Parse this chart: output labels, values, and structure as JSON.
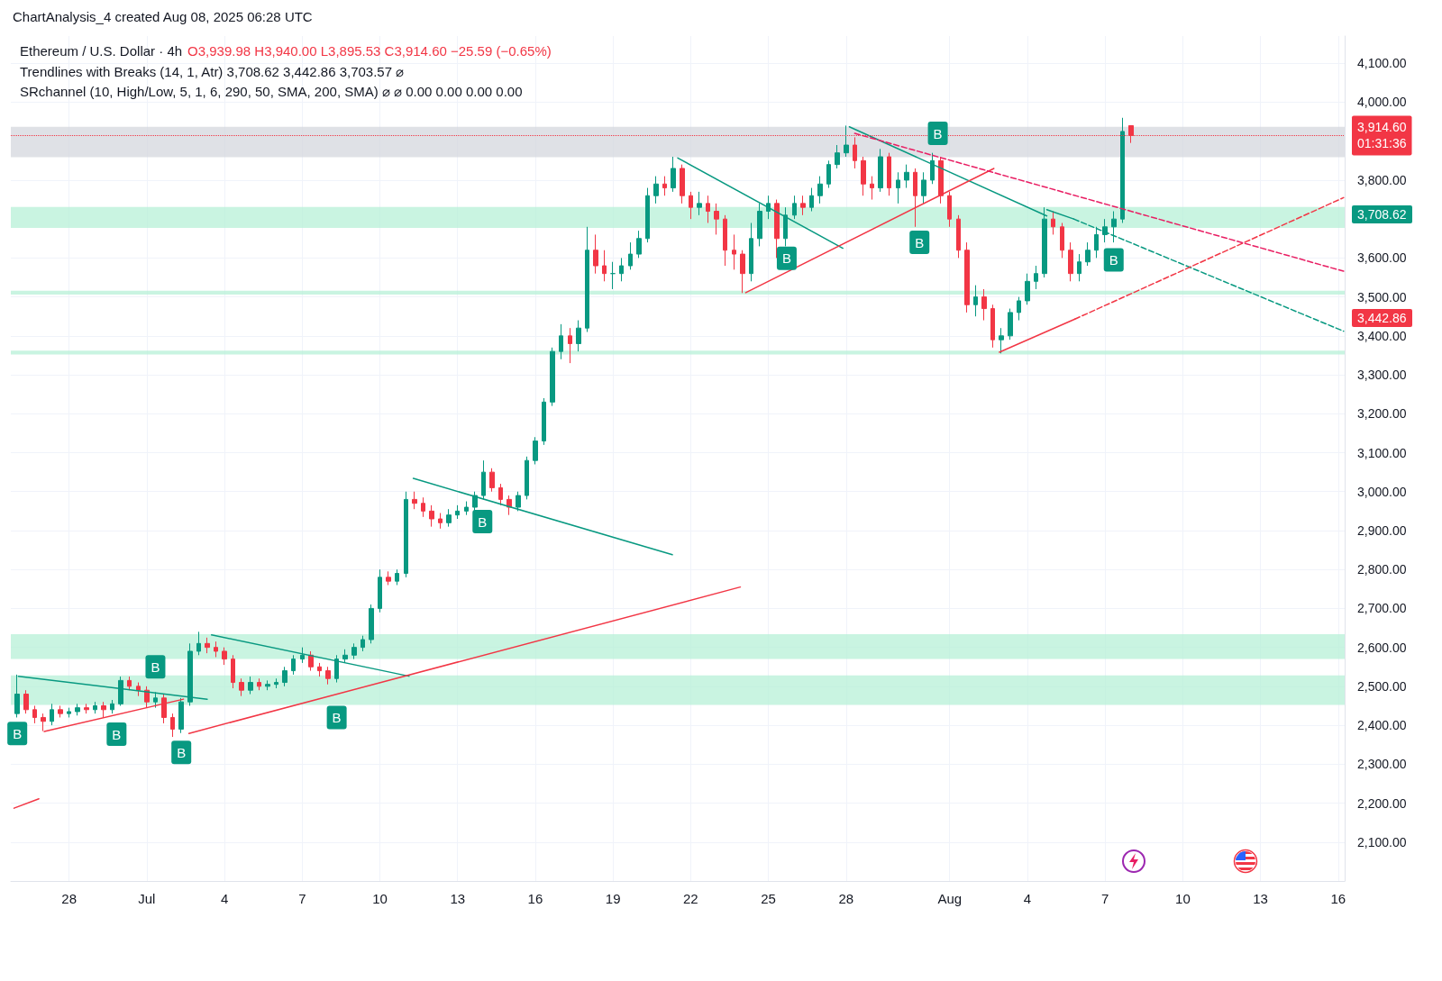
{
  "chart_data": {
    "type": "candlestick",
    "title": "Ethereum / U.S. Dollar · 4h",
    "subtitle": "O3,939.98 H3,940.00 L3,895.53 C3,914.60 −25.59 (−0.65%)",
    "annotations": [
      "ChartAnalysis_4 created Aug 08, 2025 06:28 UTC",
      "Trendlines with Breaks (14, 1, Atr) 3,708.62 3,442.86 3,703.57 ⌀",
      "SRchannel (10, High/Low, 5, 1, 6, 290, 50, SMA, 200, SMA) ⌀ ⌀ 0.00 0.00 0.00 0.00",
      {
        "text": "B",
        "x": "2025-06-26T00:00",
        "y": 2379
      },
      {
        "text": "B",
        "x": "2025-06-29T20:00",
        "y": 2377
      },
      {
        "text": "B",
        "x": "2025-07-01T08:00",
        "y": 2550
      },
      {
        "text": "B",
        "x": "2025-07-02T08:00",
        "y": 2330
      },
      {
        "text": "B",
        "x": "2025-07-08T08:00",
        "y": 2420
      },
      {
        "text": "B",
        "x": "2025-07-13T23:00",
        "y": 2923
      },
      {
        "text": "B",
        "x": "2025-07-25T17:00",
        "y": 3599
      },
      {
        "text": "B",
        "x": "2025-07-30T20:00",
        "y": 3640
      },
      {
        "text": "B",
        "x": "2025-07-31T13:00",
        "y": 3920
      },
      {
        "text": "B",
        "x": "2025-08-07T08:00",
        "y": 3595
      },
      "3,708.62",
      "3,442.86"
    ],
    "xlim": [
      "2025-06-25T18:00",
      "2025-08-16T06:00"
    ],
    "xticks": [
      {
        "value": "2025-06-28",
        "label": "28"
      },
      {
        "value": "2025-07-01",
        "label": "Jul"
      },
      {
        "value": "2025-07-04",
        "label": "4"
      },
      {
        "value": "2025-07-07",
        "label": "7"
      },
      {
        "value": "2025-07-10",
        "label": "10"
      },
      {
        "value": "2025-07-13",
        "label": "13"
      },
      {
        "value": "2025-07-16",
        "label": "16"
      },
      {
        "value": "2025-07-19",
        "label": "19"
      },
      {
        "value": "2025-07-22",
        "label": "22"
      },
      {
        "value": "2025-07-25",
        "label": "25"
      },
      {
        "value": "2025-07-28",
        "label": "28"
      },
      {
        "value": "2025-08-01",
        "label": "Aug"
      },
      {
        "value": "2025-08-04",
        "label": "4"
      },
      {
        "value": "2025-08-07",
        "label": "7"
      },
      {
        "value": "2025-08-10",
        "label": "10"
      },
      {
        "value": "2025-08-13",
        "label": "13"
      },
      {
        "value": "2025-08-16",
        "label": "16"
      }
    ],
    "ylim": [
      2000,
      4170
    ],
    "yticks": [
      {
        "value": 2100,
        "label": "2,100.00"
      },
      {
        "value": 2200,
        "label": "2,200.00"
      },
      {
        "value": 2300,
        "label": "2,300.00"
      },
      {
        "value": 2400,
        "label": "2,400.00"
      },
      {
        "value": 2500,
        "label": "2,500.00"
      },
      {
        "value": 2600,
        "label": "2,600.00"
      },
      {
        "value": 2700,
        "label": "2,700.00"
      },
      {
        "value": 2800,
        "label": "2,800.00"
      },
      {
        "value": 2900,
        "label": "2,900.00"
      },
      {
        "value": 3000,
        "label": "3,000.00"
      },
      {
        "value": 3100,
        "label": "3,100.00"
      },
      {
        "value": 3200,
        "label": "3,200.00"
      },
      {
        "value": 3300,
        "label": "3,300.00"
      },
      {
        "value": 3400,
        "label": "3,400.00"
      },
      {
        "value": 3500,
        "label": "3,500.00"
      },
      {
        "value": 3600,
        "label": "3,600.00"
      },
      {
        "value": 3800,
        "label": "3,800.00"
      },
      {
        "value": 4000,
        "label": "4,000.00"
      },
      {
        "value": 4100,
        "label": "4,100.00"
      }
    ],
    "grid": true,
    "marker": "none",
    "ref_lines": [
      {
        "axis": "y",
        "value": 3914.6,
        "label": "3,914.60\n01:31:36",
        "color": "#f23645",
        "line_style": "dotted"
      }
    ],
    "bands": [
      {
        "axis": "y",
        "from": 3859,
        "to": 3937,
        "color": "#d1d4dc"
      },
      {
        "axis": "y",
        "from": 3677,
        "to": 3731,
        "color": "#b2f0d4"
      },
      {
        "axis": "y",
        "from": 3506,
        "to": 3516,
        "color": "#b2f0d4"
      },
      {
        "axis": "y",
        "from": 3352,
        "to": 3362,
        "color": "#b2f0d4"
      },
      {
        "axis": "y",
        "from": 2570,
        "to": 2634,
        "color": "#b2f0d4"
      },
      {
        "axis": "y",
        "from": 2452,
        "to": 2528,
        "color": "#b2f0d4"
      }
    ],
    "series": [
      {
        "x": [
          "2025-06-26T00:00",
          "2025-06-26T08:00",
          "2025-06-26T16:00",
          "2025-06-27T00:00",
          "2025-06-27T08:00",
          "2025-06-27T16:00",
          "2025-06-28T00:00",
          "2025-06-28T08:00",
          "2025-06-28T16:00",
          "2025-06-29T00:00",
          "2025-06-29T08:00",
          "2025-06-29T16:00",
          "2025-06-30T00:00",
          "2025-06-30T08:00",
          "2025-06-30T16:00",
          "2025-07-01T00:00",
          "2025-07-01T08:00",
          "2025-07-01T16:00",
          "2025-07-02T00:00",
          "2025-07-02T08:00",
          "2025-07-02T16:00",
          "2025-07-03T00:00",
          "2025-07-03T08:00",
          "2025-07-03T16:00",
          "2025-07-04T00:00",
          "2025-07-04T08:00",
          "2025-07-04T16:00",
          "2025-07-05T00:00",
          "2025-07-05T08:00",
          "2025-07-05T16:00",
          "2025-07-06T00:00",
          "2025-07-06T08:00",
          "2025-07-06T16:00",
          "2025-07-07T00:00",
          "2025-07-07T08:00",
          "2025-07-07T16:00",
          "2025-07-08T00:00",
          "2025-07-08T08:00",
          "2025-07-08T16:00",
          "2025-07-09T00:00",
          "2025-07-09T08:00",
          "2025-07-09T16:00",
          "2025-07-10T00:00",
          "2025-07-10T08:00",
          "2025-07-10T16:00",
          "2025-07-11T00:00",
          "2025-07-11T08:00",
          "2025-07-11T16:00",
          "2025-07-12T00:00",
          "2025-07-12T08:00",
          "2025-07-12T16:00",
          "2025-07-13T00:00",
          "2025-07-13T08:00",
          "2025-07-13T16:00",
          "2025-07-14T00:00",
          "2025-07-14T08:00",
          "2025-07-14T16:00",
          "2025-07-15T00:00",
          "2025-07-15T08:00",
          "2025-07-15T16:00",
          "2025-07-16T00:00",
          "2025-07-16T08:00",
          "2025-07-16T16:00",
          "2025-07-17T00:00",
          "2025-07-17T08:00",
          "2025-07-17T16:00",
          "2025-07-18T00:00",
          "2025-07-18T08:00",
          "2025-07-18T16:00",
          "2025-07-19T00:00",
          "2025-07-19T08:00",
          "2025-07-19T16:00",
          "2025-07-20T00:00",
          "2025-07-20T08:00",
          "2025-07-20T16:00",
          "2025-07-21T00:00",
          "2025-07-21T08:00",
          "2025-07-21T16:00",
          "2025-07-22T00:00",
          "2025-07-22T08:00",
          "2025-07-22T16:00",
          "2025-07-23T00:00",
          "2025-07-23T08:00",
          "2025-07-23T16:00",
          "2025-07-24T00:00",
          "2025-07-24T08:00",
          "2025-07-24T16:00",
          "2025-07-25T00:00",
          "2025-07-25T08:00",
          "2025-07-25T16:00",
          "2025-07-26T00:00",
          "2025-07-26T08:00",
          "2025-07-26T16:00",
          "2025-07-27T00:00",
          "2025-07-27T08:00",
          "2025-07-27T16:00",
          "2025-07-28T00:00",
          "2025-07-28T08:00",
          "2025-07-28T16:00",
          "2025-07-29T00:00",
          "2025-07-29T08:00",
          "2025-07-29T16:00",
          "2025-07-30T00:00",
          "2025-07-30T08:00",
          "2025-07-30T16:00",
          "2025-07-31T00:00",
          "2025-07-31T08:00",
          "2025-07-31T16:00",
          "2025-08-01T00:00",
          "2025-08-01T08:00",
          "2025-08-01T16:00",
          "2025-08-02T00:00",
          "2025-08-02T08:00",
          "2025-08-02T16:00",
          "2025-08-03T00:00",
          "2025-08-03T08:00",
          "2025-08-03T16:00",
          "2025-08-04T00:00",
          "2025-08-04T08:00",
          "2025-08-04T16:00",
          "2025-08-05T00:00",
          "2025-08-05T08:00",
          "2025-08-05T16:00",
          "2025-08-06T00:00",
          "2025-08-06T08:00",
          "2025-08-06T16:00",
          "2025-08-07T00:00",
          "2025-08-07T08:00",
          "2025-08-07T16:00",
          "2025-08-08T00:00"
        ],
        "ohlc": [
          [
            2430,
            2530,
            2420,
            2480
          ],
          [
            2480,
            2490,
            2430,
            2440
          ],
          [
            2440,
            2450,
            2405,
            2420
          ],
          [
            2420,
            2430,
            2385,
            2410
          ],
          [
            2410,
            2455,
            2400,
            2440
          ],
          [
            2440,
            2450,
            2420,
            2430
          ],
          [
            2430,
            2445,
            2420,
            2435
          ],
          [
            2435,
            2455,
            2425,
            2445
          ],
          [
            2445,
            2455,
            2430,
            2440
          ],
          [
            2440,
            2460,
            2430,
            2450
          ],
          [
            2450,
            2460,
            2420,
            2440
          ],
          [
            2440,
            2465,
            2430,
            2455
          ],
          [
            2455,
            2525,
            2450,
            2515
          ],
          [
            2515,
            2525,
            2490,
            2500
          ],
          [
            2500,
            2510,
            2475,
            2490
          ],
          [
            2490,
            2500,
            2445,
            2460
          ],
          [
            2460,
            2485,
            2445,
            2470
          ],
          [
            2470,
            2480,
            2405,
            2420
          ],
          [
            2420,
            2430,
            2370,
            2390
          ],
          [
            2390,
            2470,
            2380,
            2460
          ],
          [
            2460,
            2610,
            2450,
            2590
          ],
          [
            2590,
            2640,
            2580,
            2610
          ],
          [
            2610,
            2625,
            2585,
            2600
          ],
          [
            2600,
            2615,
            2575,
            2590
          ],
          [
            2590,
            2600,
            2555,
            2570
          ],
          [
            2570,
            2580,
            2495,
            2510
          ],
          [
            2510,
            2520,
            2475,
            2490
          ],
          [
            2490,
            2525,
            2480,
            2510
          ],
          [
            2510,
            2520,
            2490,
            2500
          ],
          [
            2500,
            2515,
            2490,
            2505
          ],
          [
            2505,
            2520,
            2495,
            2510
          ],
          [
            2510,
            2550,
            2500,
            2540
          ],
          [
            2540,
            2580,
            2530,
            2570
          ],
          [
            2570,
            2600,
            2560,
            2580
          ],
          [
            2580,
            2590,
            2540,
            2550
          ],
          [
            2550,
            2560,
            2525,
            2540
          ],
          [
            2540,
            2550,
            2505,
            2520
          ],
          [
            2520,
            2580,
            2510,
            2570
          ],
          [
            2570,
            2595,
            2560,
            2580
          ],
          [
            2580,
            2610,
            2570,
            2600
          ],
          [
            2600,
            2630,
            2590,
            2620
          ],
          [
            2620,
            2710,
            2610,
            2700
          ],
          [
            2700,
            2800,
            2690,
            2780
          ],
          [
            2780,
            2795,
            2760,
            2770
          ],
          [
            2770,
            2800,
            2760,
            2790
          ],
          [
            2790,
            3000,
            2780,
            2980
          ],
          [
            2980,
            3000,
            2955,
            2970
          ],
          [
            2970,
            2985,
            2935,
            2950
          ],
          [
            2950,
            2965,
            2910,
            2930
          ],
          [
            2930,
            2945,
            2905,
            2920
          ],
          [
            2920,
            2955,
            2910,
            2940
          ],
          [
            2940,
            2965,
            2930,
            2950
          ],
          [
            2950,
            2975,
            2940,
            2960
          ],
          [
            2960,
            3000,
            2950,
            2990
          ],
          [
            2990,
            3080,
            2980,
            3050
          ],
          [
            3050,
            3060,
            3000,
            3010
          ],
          [
            3010,
            3020,
            2965,
            2980
          ],
          [
            2980,
            2990,
            2940,
            2960
          ],
          [
            2960,
            3000,
            2950,
            2990
          ],
          [
            2990,
            3090,
            2980,
            3080
          ],
          [
            3080,
            3140,
            3070,
            3130
          ],
          [
            3130,
            3240,
            3120,
            3230
          ],
          [
            3230,
            3370,
            3220,
            3360
          ],
          [
            3360,
            3430,
            3340,
            3400
          ],
          [
            3400,
            3420,
            3330,
            3380
          ],
          [
            3380,
            3440,
            3360,
            3420
          ],
          [
            3420,
            3680,
            3410,
            3620
          ],
          [
            3620,
            3660,
            3560,
            3580
          ],
          [
            3580,
            3620,
            3540,
            3560
          ],
          [
            3560,
            3590,
            3520,
            3560
          ],
          [
            3560,
            3600,
            3540,
            3580
          ],
          [
            3580,
            3640,
            3570,
            3610
          ],
          [
            3610,
            3670,
            3600,
            3650
          ],
          [
            3650,
            3780,
            3640,
            3760
          ],
          [
            3760,
            3810,
            3740,
            3790
          ],
          [
            3790,
            3810,
            3760,
            3780
          ],
          [
            3780,
            3860,
            3770,
            3830
          ],
          [
            3830,
            3840,
            3740,
            3760
          ],
          [
            3760,
            3770,
            3700,
            3730
          ],
          [
            3730,
            3770,
            3710,
            3740
          ],
          [
            3740,
            3760,
            3690,
            3720
          ],
          [
            3720,
            3740,
            3660,
            3700
          ],
          [
            3700,
            3710,
            3580,
            3620
          ],
          [
            3620,
            3660,
            3570,
            3610
          ],
          [
            3610,
            3620,
            3510,
            3560
          ],
          [
            3560,
            3690,
            3540,
            3650
          ],
          [
            3650,
            3740,
            3630,
            3720
          ],
          [
            3720,
            3760,
            3700,
            3740
          ],
          [
            3740,
            3750,
            3600,
            3650
          ],
          [
            3650,
            3730,
            3630,
            3710
          ],
          [
            3710,
            3760,
            3700,
            3740
          ],
          [
            3740,
            3760,
            3710,
            3730
          ],
          [
            3730,
            3780,
            3720,
            3760
          ],
          [
            3760,
            3810,
            3740,
            3790
          ],
          [
            3790,
            3850,
            3780,
            3840
          ],
          [
            3840,
            3890,
            3830,
            3870
          ],
          [
            3870,
            3940,
            3860,
            3890
          ],
          [
            3890,
            3910,
            3830,
            3850
          ],
          [
            3850,
            3860,
            3760,
            3790
          ],
          [
            3790,
            3810,
            3750,
            3780
          ],
          [
            3780,
            3880,
            3770,
            3860
          ],
          [
            3860,
            3870,
            3760,
            3780
          ],
          [
            3780,
            3820,
            3740,
            3800
          ],
          [
            3800,
            3840,
            3780,
            3820
          ],
          [
            3820,
            3830,
            3680,
            3760
          ],
          [
            3760,
            3820,
            3740,
            3800
          ],
          [
            3800,
            3870,
            3790,
            3850
          ],
          [
            3850,
            3860,
            3740,
            3760
          ],
          [
            3760,
            3770,
            3680,
            3700
          ],
          [
            3700,
            3710,
            3600,
            3620
          ],
          [
            3620,
            3640,
            3460,
            3480
          ],
          [
            3480,
            3530,
            3450,
            3500
          ],
          [
            3500,
            3520,
            3440,
            3470
          ],
          [
            3470,
            3480,
            3370,
            3390
          ],
          [
            3390,
            3420,
            3355,
            3400
          ],
          [
            3400,
            3470,
            3390,
            3460
          ],
          [
            3460,
            3500,
            3440,
            3490
          ],
          [
            3490,
            3560,
            3480,
            3540
          ],
          [
            3540,
            3580,
            3520,
            3560
          ],
          [
            3560,
            3730,
            3550,
            3700
          ],
          [
            3700,
            3720,
            3660,
            3680
          ],
          [
            3680,
            3690,
            3600,
            3620
          ],
          [
            3620,
            3640,
            3540,
            3560
          ],
          [
            3560,
            3610,
            3540,
            3590
          ],
          [
            3590,
            3640,
            3580,
            3620
          ],
          [
            3620,
            3680,
            3600,
            3660
          ],
          [
            3660,
            3700,
            3640,
            3680
          ],
          [
            3680,
            3720,
            3640,
            3700
          ],
          [
            3700,
            3960,
            3690,
            3925
          ],
          [
            3939.98,
            3940,
            3895.53,
            3914.6
          ]
        ]
      },
      {
        "type": "line",
        "color": "#089981",
        "line_style": "solid",
        "x": [
          "2025-06-26T01:00",
          "2025-07-03T08:00"
        ],
        "values": [
          2526,
          2467
        ]
      },
      {
        "type": "line",
        "color": "#089981",
        "line_style": "solid",
        "x": [
          "2025-07-03T12:00",
          "2025-07-11T03:00"
        ],
        "values": [
          2632,
          2526
        ]
      },
      {
        "type": "line",
        "color": "#089981",
        "line_style": "solid",
        "x": [
          "2025-07-11T07:00",
          "2025-07-21T07:00"
        ],
        "values": [
          3034,
          2838
        ]
      },
      {
        "type": "line",
        "color": "#089981",
        "line_style": "solid",
        "x": [
          "2025-07-21T12:00",
          "2025-07-27T21:00"
        ],
        "values": [
          3857,
          3625
        ]
      },
      {
        "type": "line",
        "color": "#089981",
        "line_style": "solid",
        "x": [
          "2025-07-28T03:00",
          "2025-08-04T18:00"
        ],
        "values": [
          3937,
          3708
        ]
      },
      {
        "type": "line",
        "color": "#089981",
        "line_style": "solid",
        "x": [
          "2025-08-04T18:00",
          "2025-08-05T19:00"
        ],
        "values": [
          3724,
          3700
        ]
      },
      {
        "type": "line",
        "color": "#089981",
        "line_style": "dashed",
        "x": [
          "2025-08-05T19:00",
          "2025-08-16T05:00"
        ],
        "values": [
          3700,
          3412
        ]
      },
      {
        "type": "line",
        "color": "#f23645",
        "line_style": "solid",
        "x": [
          "2025-06-25T21:00",
          "2025-06-26T20:00"
        ],
        "values": [
          2187,
          2211
        ]
      },
      {
        "type": "line",
        "color": "#f23645",
        "line_style": "solid",
        "x": [
          "2025-06-27T01:00",
          "2025-07-02T10:00"
        ],
        "values": [
          2384,
          2467
        ]
      },
      {
        "type": "line",
        "color": "#f23645",
        "line_style": "solid",
        "x": [
          "2025-07-02T15:00",
          "2025-07-23T22:00"
        ],
        "values": [
          2379,
          2755
        ]
      },
      {
        "type": "line",
        "color": "#f23645",
        "line_style": "solid",
        "x": [
          "2025-07-24T03:00",
          "2025-08-02T17:00"
        ],
        "values": [
          3511,
          3830
        ]
      },
      {
        "type": "line",
        "color": "#f23645",
        "line_style": "solid",
        "x": [
          "2025-08-02T22:00",
          "2025-08-05T20:00"
        ],
        "values": [
          3358,
          3443
        ]
      },
      {
        "type": "line",
        "color": "#f23645",
        "line_style": "dashed",
        "x": [
          "2025-08-05T20:00",
          "2025-08-16T05:00"
        ],
        "values": [
          3443,
          3755
        ]
      },
      {
        "type": "line",
        "color": "#e91e63",
        "line_style": "dashed",
        "x": [
          "2025-07-28T08:00",
          "2025-08-16T05:00"
        ],
        "values": [
          3920,
          3566
        ]
      }
    ]
  }
}
